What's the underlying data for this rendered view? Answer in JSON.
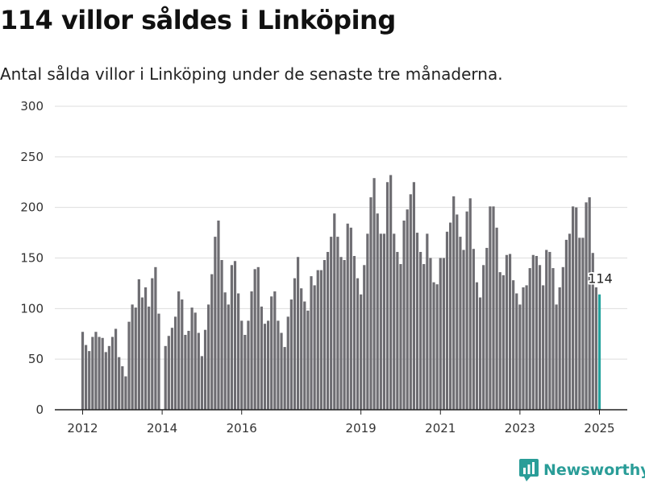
{
  "title": "114 villor såldes i Linköping",
  "subtitle": "Antal sålda villor i Linköping under de senaste tre månaderna.",
  "brand": {
    "name": "Newsworthy",
    "icon": "newsworthy-logo-icon",
    "color": "#2a9d98"
  },
  "colors": {
    "bar": "#6e6d72",
    "highlight": "#26a39e",
    "grid": "#dddddd",
    "axis": "#222222"
  },
  "chart_data": {
    "type": "bar",
    "title": "114 villor såldes i Linköping",
    "subtitle": "Antal sålda villor i Linköping under de senaste tre månaderna.",
    "xlabel": "",
    "ylabel": "",
    "ylim": [
      0,
      300
    ],
    "yticks": [
      0,
      50,
      100,
      150,
      200,
      250,
      300
    ],
    "x_ticks": [
      {
        "label": "2012",
        "index": 0
      },
      {
        "label": "2014",
        "index": 24
      },
      {
        "label": "2016",
        "index": 48
      },
      {
        "label": "2019",
        "index": 84
      },
      {
        "label": "2021",
        "index": 108
      },
      {
        "label": "2023",
        "index": 132
      },
      {
        "label": "2025",
        "index": 156
      }
    ],
    "grid": true,
    "legend": "none",
    "start": "2012-01",
    "values": [
      77,
      64,
      58,
      72,
      77,
      72,
      71,
      57,
      63,
      72,
      80,
      52,
      43,
      33,
      87,
      104,
      101,
      129,
      111,
      121,
      102,
      130,
      141,
      95,
      null,
      63,
      73,
      81,
      92,
      117,
      109,
      74,
      78,
      101,
      96,
      76,
      53,
      79,
      104,
      134,
      171,
      187,
      148,
      116,
      104,
      143,
      147,
      115,
      88,
      74,
      88,
      117,
      139,
      141,
      102,
      85,
      88,
      112,
      117,
      88,
      76,
      62,
      92,
      109,
      130,
      151,
      120,
      107,
      98,
      132,
      123,
      138,
      138,
      148,
      156,
      171,
      194,
      171,
      151,
      148,
      184,
      180,
      152,
      130,
      114,
      143,
      174,
      210,
      229,
      194,
      174,
      174,
      225,
      232,
      174,
      156,
      144,
      187,
      198,
      213,
      225,
      175,
      156,
      144,
      174,
      150,
      126,
      124,
      150,
      150,
      176,
      185,
      211,
      193,
      171,
      158,
      196,
      209,
      159,
      126,
      111,
      143,
      160,
      201,
      201,
      180,
      136,
      133,
      153,
      154,
      128,
      115,
      104,
      121,
      123,
      140,
      153,
      152,
      143,
      123,
      158,
      156,
      140,
      104,
      121,
      141,
      168,
      174,
      201,
      200,
      170,
      170,
      205,
      210,
      155,
      121,
      114
    ],
    "highlight_index": 156,
    "highlight_label": "114"
  }
}
